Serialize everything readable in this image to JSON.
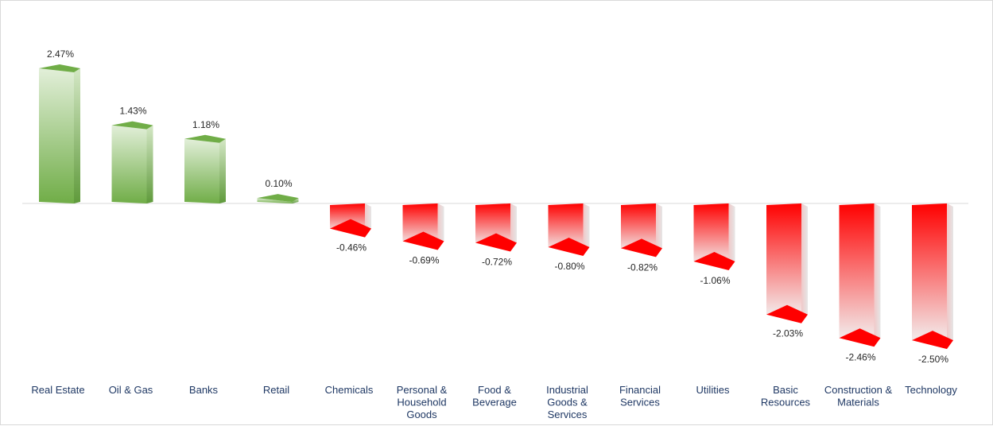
{
  "chart_data": {
    "type": "bar",
    "title": "",
    "xlabel": "",
    "ylabel": "",
    "categories": [
      [
        "Real Estate"
      ],
      [
        "Oil & Gas"
      ],
      [
        "Banks"
      ],
      [
        "Retail"
      ],
      [
        "Chemicals"
      ],
      [
        "Personal &",
        "Household",
        "Goods"
      ],
      [
        "Food &",
        "Beverage"
      ],
      [
        "Industrial",
        "Goods &",
        "Services"
      ],
      [
        "Financial",
        "Services"
      ],
      [
        "Utilities"
      ],
      [
        "Basic",
        "Resources"
      ],
      [
        "Construction &",
        "Materials"
      ],
      [
        "Technology"
      ]
    ],
    "values": [
      2.47,
      1.43,
      1.18,
      0.1,
      -0.46,
      -0.69,
      -0.72,
      -0.8,
      -0.82,
      -1.06,
      -2.03,
      -2.46,
      -2.5
    ],
    "data_labels": [
      "2.47%",
      "1.43%",
      "1.18%",
      "0.10%",
      "-0.46%",
      "-0.69%",
      "-0.72%",
      "-0.80%",
      "-0.82%",
      "-1.06%",
      "-2.03%",
      "-2.46%",
      "-2.50%"
    ],
    "unit": "%",
    "ylim": [
      -2.5,
      2.47
    ],
    "grid": false,
    "legend": "none",
    "colors": {
      "positive_dark": "#70ad47",
      "positive_light": "#e2efd9",
      "negative_dark": "#ff0000",
      "negative_light": "#f2f2f2",
      "axis": "#d9d9d9",
      "category_text": "#1f3864",
      "label_text": "#262626"
    }
  }
}
